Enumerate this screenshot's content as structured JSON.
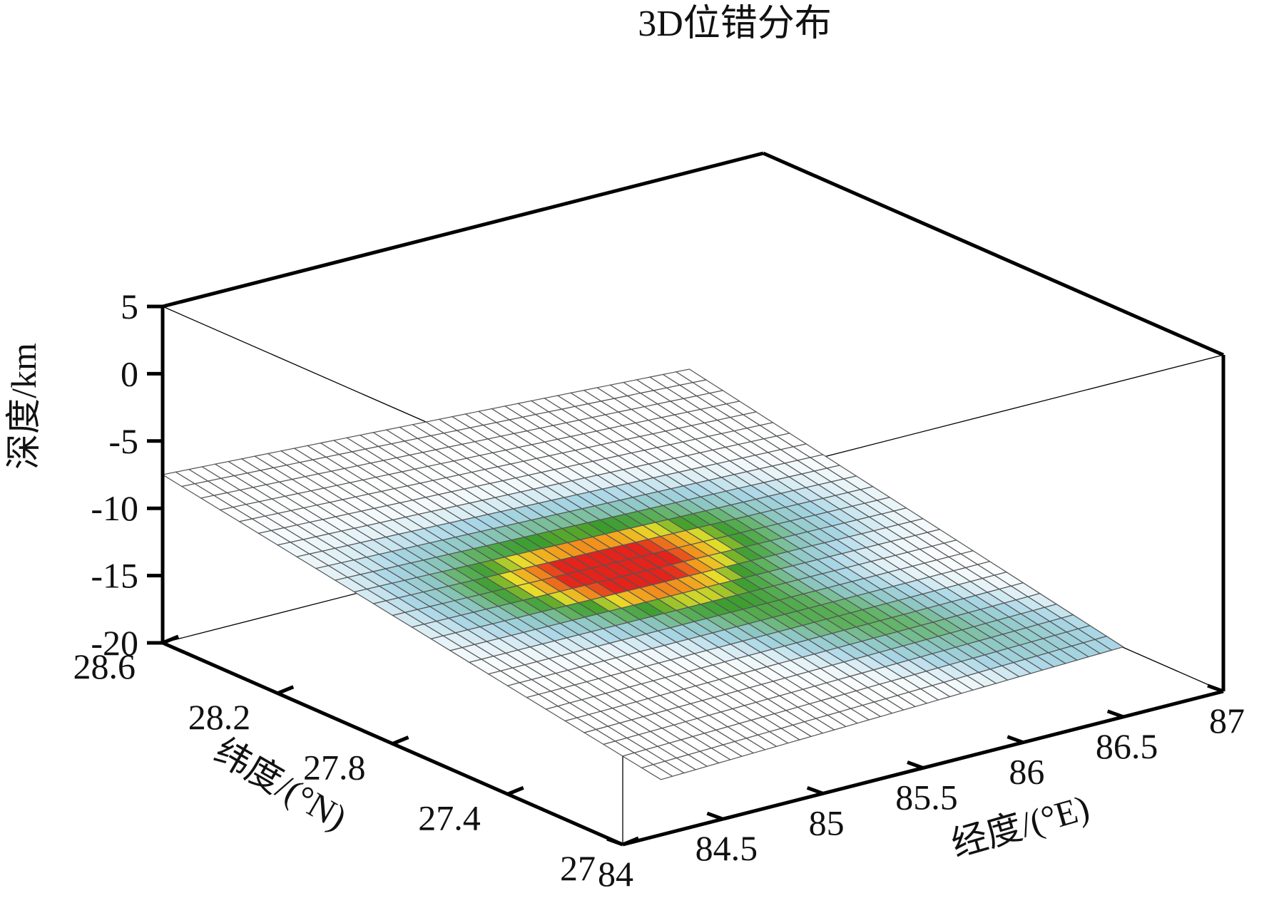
{
  "chart_data": {
    "type": "surface3d",
    "title": "3D位错分布",
    "xlabel": "经度/(°E)",
    "ylabel": "纬度/(°N)",
    "zlabel": "深度/km",
    "xlim": [
      84,
      87
    ],
    "ylim": [
      27,
      28.6
    ],
    "zlim": [
      -20,
      5
    ],
    "x_ticks": [
      84,
      84.5,
      85,
      85.5,
      86,
      86.5,
      87
    ],
    "x_tick_labels": [
      "84",
      "84.5",
      "85",
      "85.5",
      "86",
      "86.5",
      "87"
    ],
    "y_ticks": [
      27,
      27.4,
      27.8,
      28.2,
      28.6
    ],
    "y_tick_labels": [
      "27",
      "27.4",
      "27.8",
      "28.2",
      "28.6"
    ],
    "z_ticks": [
      -20,
      -15,
      -10,
      -5,
      0,
      5
    ],
    "z_tick_labels": [
      "-20",
      "-15",
      "-10",
      "-5",
      "0",
      "5"
    ],
    "fault_plane": {
      "corners": [
        {
          "lon": 84.55,
          "lat": 27.25,
          "depth": -19.6
        },
        {
          "lon": 86.5,
          "lat": 27.0,
          "depth": -14.8
        },
        {
          "lon": 86.2,
          "lat": 28.3,
          "depth": -5.2
        },
        {
          "lon": 84.0,
          "lat": 28.6,
          "depth": -7.5
        }
      ],
      "grid_size": [
        40,
        26
      ],
      "slip_peak": {
        "u": 0.47,
        "v": 0.54
      },
      "colormap": [
        "#ffffff",
        "#a9d6e6",
        "#8bc6c0",
        "#5fb25f",
        "#3a9d2c",
        "#e8e02a",
        "#f39b1c",
        "#e4231b"
      ]
    },
    "grid": false,
    "legend": "none"
  }
}
